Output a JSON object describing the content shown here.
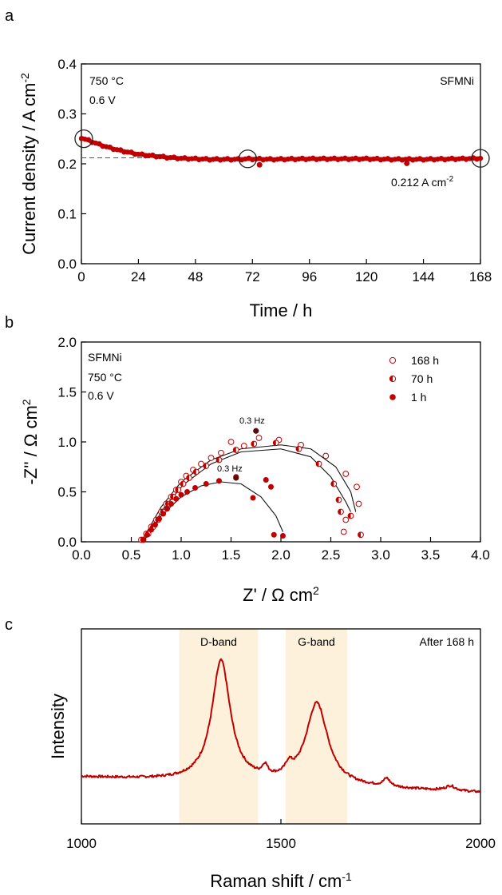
{
  "colors": {
    "red": "#c00000",
    "dark": "#5a0a0a",
    "band": "#fdf1dc",
    "dash": "#555555"
  },
  "chart_data": [
    {
      "type": "scatter",
      "panel": "a",
      "xlabel": "Time / h",
      "ylabel": "Current density / A cm",
      "ylabel_sup": "-2",
      "xlim": [
        0,
        168
      ],
      "ylim": [
        0,
        0.4
      ],
      "xticks": [
        0,
        24,
        48,
        72,
        96,
        120,
        144,
        168
      ],
      "yticks": [
        0.0,
        0.1,
        0.2,
        0.3,
        0.4
      ],
      "ytick_labels": [
        "0.0",
        "0.1",
        "0.2",
        "0.3",
        "0.4"
      ],
      "annotations": {
        "temp": "750 °C",
        "volt": "0.6 V",
        "sample": "SFMNi",
        "ref_label": "0.212 A cm",
        "ref_label_sup": "-2",
        "ref_value": 0.212
      },
      "circled_times": [
        1,
        70,
        168
      ],
      "outliers": [
        {
          "x": 75,
          "y": 0.198
        },
        {
          "x": 137,
          "y": 0.201
        }
      ],
      "curve": [
        [
          0,
          0.252
        ],
        [
          4,
          0.245
        ],
        [
          8,
          0.238
        ],
        [
          12,
          0.232
        ],
        [
          16,
          0.227
        ],
        [
          20,
          0.223
        ],
        [
          24,
          0.219
        ],
        [
          30,
          0.216
        ],
        [
          36,
          0.213
        ],
        [
          42,
          0.211
        ],
        [
          48,
          0.21
        ],
        [
          54,
          0.209
        ],
        [
          60,
          0.209
        ],
        [
          66,
          0.209
        ],
        [
          70,
          0.21
        ],
        [
          80,
          0.209
        ],
        [
          96,
          0.21
        ],
        [
          110,
          0.21
        ],
        [
          120,
          0.21
        ],
        [
          130,
          0.209
        ],
        [
          144,
          0.209
        ],
        [
          160,
          0.21
        ],
        [
          168,
          0.211
        ]
      ]
    },
    {
      "type": "scatter",
      "panel": "b",
      "xlabel": "Z' / Ω cm",
      "xlabel_sup": "2",
      "ylabel": "-Z'' / Ω cm",
      "ylabel_sup": "2",
      "xlim": [
        0,
        4
      ],
      "ylim": [
        0,
        2
      ],
      "xticks": [
        0,
        0.5,
        1,
        1.5,
        2,
        2.5,
        3,
        3.5,
        4
      ],
      "xtick_labels": [
        "0.0",
        "0.5",
        "1.0",
        "1.5",
        "2.0",
        "2.5",
        "3.0",
        "3.5",
        "4.0"
      ],
      "yticks": [
        0,
        0.5,
        1,
        1.5,
        2
      ],
      "ytick_labels": [
        "0.0",
        "0.5",
        "1.0",
        "1.5",
        "2.0"
      ],
      "annotations": {
        "sample": "SFMNi",
        "temp": "750 °C",
        "volt": "0.6 V",
        "freq1": "0.3 Hz",
        "freq2": "0.3 Hz"
      },
      "series": [
        {
          "name": "168 h",
          "marker": "open",
          "points": [
            [
              0.6,
              0.02
            ],
            [
              0.65,
              0.08
            ],
            [
              0.7,
              0.15
            ],
            [
              0.75,
              0.22
            ],
            [
              0.8,
              0.3
            ],
            [
              0.85,
              0.38
            ],
            [
              0.9,
              0.45
            ],
            [
              0.95,
              0.52
            ],
            [
              1.0,
              0.6
            ],
            [
              1.05,
              0.66
            ],
            [
              1.12,
              0.72
            ],
            [
              1.2,
              0.78
            ],
            [
              1.3,
              0.84
            ],
            [
              1.4,
              0.89
            ],
            [
              1.5,
              1.0
            ],
            [
              1.63,
              0.96
            ],
            [
              1.78,
              1.04
            ],
            [
              1.98,
              1.02
            ],
            [
              2.2,
              0.97
            ],
            [
              2.45,
              0.86
            ],
            [
              2.65,
              0.68
            ],
            [
              2.76,
              0.55
            ],
            [
              2.78,
              0.38
            ],
            [
              2.65,
              0.22
            ],
            [
              2.63,
              0.1
            ]
          ],
          "fit": [
            [
              0.6,
              0.0
            ],
            [
              0.8,
              0.35
            ],
            [
              1.0,
              0.6
            ],
            [
              1.3,
              0.82
            ],
            [
              1.6,
              0.93
            ],
            [
              2.0,
              0.97
            ],
            [
              2.3,
              0.93
            ],
            [
              2.55,
              0.75
            ],
            [
              2.7,
              0.5
            ],
            [
              2.75,
              0.3
            ]
          ]
        },
        {
          "name": "70 h",
          "marker": "half",
          "points": [
            [
              0.62,
              0.02
            ],
            [
              0.67,
              0.08
            ],
            [
              0.72,
              0.15
            ],
            [
              0.77,
              0.22
            ],
            [
              0.82,
              0.3
            ],
            [
              0.87,
              0.38
            ],
            [
              0.92,
              0.45
            ],
            [
              0.97,
              0.52
            ],
            [
              1.02,
              0.58
            ],
            [
              1.08,
              0.64
            ],
            [
              1.15,
              0.7
            ],
            [
              1.25,
              0.76
            ],
            [
              1.38,
              0.82
            ],
            [
              1.55,
              0.92
            ],
            [
              1.73,
              0.98
            ],
            [
              1.95,
              0.99
            ],
            [
              2.18,
              0.93
            ],
            [
              2.38,
              0.78
            ],
            [
              2.53,
              0.58
            ],
            [
              2.58,
              0.42
            ],
            [
              2.6,
              0.3
            ],
            [
              2.7,
              0.26
            ],
            [
              2.8,
              0.07
            ]
          ],
          "fit": [
            [
              0.62,
              0.0
            ],
            [
              0.82,
              0.33
            ],
            [
              1.02,
              0.57
            ],
            [
              1.3,
              0.78
            ],
            [
              1.6,
              0.9
            ],
            [
              2.0,
              0.93
            ],
            [
              2.3,
              0.85
            ],
            [
              2.5,
              0.65
            ],
            [
              2.65,
              0.4
            ],
            [
              2.7,
              0.3
            ]
          ]
        },
        {
          "name": "1 h",
          "marker": "filled",
          "points": [
            [
              0.62,
              0.02
            ],
            [
              0.66,
              0.07
            ],
            [
              0.7,
              0.12
            ],
            [
              0.74,
              0.17
            ],
            [
              0.78,
              0.23
            ],
            [
              0.82,
              0.28
            ],
            [
              0.86,
              0.33
            ],
            [
              0.9,
              0.38
            ],
            [
              0.95,
              0.43
            ],
            [
              1.0,
              0.47
            ],
            [
              1.06,
              0.5
            ],
            [
              1.14,
              0.54
            ],
            [
              1.25,
              0.58
            ],
            [
              1.38,
              0.61
            ],
            [
              1.55,
              0.65
            ],
            [
              1.72,
              0.44
            ],
            [
              1.85,
              0.62
            ],
            [
              1.9,
              0.55
            ],
            [
              1.93,
              0.07
            ],
            [
              2.02,
              0.06
            ]
          ],
          "fit": [
            [
              0.62,
              0.0
            ],
            [
              0.8,
              0.26
            ],
            [
              1.0,
              0.45
            ],
            [
              1.2,
              0.56
            ],
            [
              1.4,
              0.6
            ],
            [
              1.6,
              0.58
            ],
            [
              1.8,
              0.45
            ],
            [
              1.95,
              0.26
            ],
            [
              2.02,
              0.1
            ]
          ]
        }
      ],
      "freq_points": [
        {
          "x": 1.75,
          "y": 1.11
        },
        {
          "x": 1.55,
          "y": 0.64
        }
      ]
    },
    {
      "type": "line",
      "panel": "c",
      "xlabel": "Raman shift / cm",
      "xlabel_sup": "-1",
      "ylabel": "Intensity",
      "xlim": [
        1000,
        2000
      ],
      "xticks": [
        1000,
        1500,
        2000
      ],
      "bands": [
        {
          "label": "D-band",
          "from": 1245,
          "to": 1443
        },
        {
          "label": "G-band",
          "from": 1512,
          "to": 1666
        }
      ],
      "annotation": "After 168 h",
      "peaks": [
        {
          "center": 1350,
          "height": 0.62,
          "width": 28
        },
        {
          "center": 1590,
          "height": 0.42,
          "width": 33
        },
        {
          "center": 1460,
          "height": 0.05,
          "width": 8
        },
        {
          "center": 1520,
          "height": 0.05,
          "width": 10
        },
        {
          "center": 1765,
          "height": 0.04,
          "width": 10
        },
        {
          "center": 1925,
          "height": 0.025,
          "width": 15
        }
      ],
      "baseline": {
        "start": 0.24,
        "end": 0.16
      }
    }
  ]
}
